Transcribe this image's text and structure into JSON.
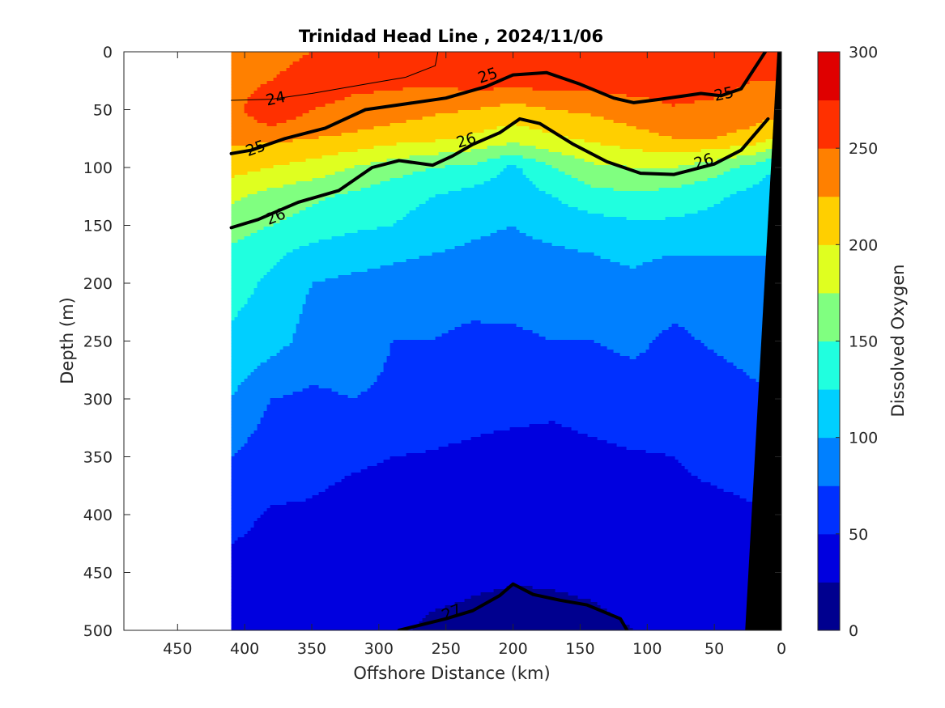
{
  "chart_data": {
    "type": "heatmap",
    "title": "Trinidad Head Line , 2024/11/06",
    "xlabel": "Offshore Distance (km)",
    "ylabel": "Depth (m)",
    "colorbar_label": "Dissolved Oxygen",
    "x_axis": {
      "range": [
        490,
        0
      ],
      "reversed": true,
      "ticks": [
        450,
        400,
        350,
        300,
        250,
        200,
        150,
        100,
        50,
        0
      ],
      "tick_labels": [
        "450",
        "400",
        "350",
        "300",
        "250",
        "200",
        "150",
        "100",
        "50",
        "0"
      ]
    },
    "y_axis": {
      "range": [
        0,
        500
      ],
      "reversed": true,
      "ticks": [
        0,
        50,
        100,
        150,
        200,
        250,
        300,
        350,
        400,
        450,
        500
      ],
      "tick_labels": [
        "0",
        "50",
        "100",
        "150",
        "200",
        "250",
        "300",
        "350",
        "400",
        "450",
        "500"
      ]
    },
    "colorbar": {
      "range": [
        0,
        300
      ],
      "ticks": [
        0,
        50,
        100,
        150,
        200,
        250,
        300
      ],
      "tick_labels": [
        "0",
        "50",
        "100",
        "150",
        "200",
        "250",
        "300"
      ],
      "levels": [
        0,
        25,
        50,
        75,
        100,
        125,
        150,
        175,
        200,
        225,
        250,
        275,
        300
      ],
      "colors": [
        "#00008f",
        "#0000df",
        "#0030ff",
        "#0080ff",
        "#00cfff",
        "#20ffdf",
        "#80ff80",
        "#dfff20",
        "#ffcf00",
        "#ff8000",
        "#ff3000",
        "#df0000"
      ]
    },
    "data_extent_km": [
      0,
      410
    ],
    "field": {
      "x": [
        410,
        380,
        350,
        320,
        290,
        260,
        230,
        200,
        170,
        140,
        110,
        80,
        50,
        20,
        10
      ],
      "y": [
        0,
        25,
        50,
        75,
        100,
        125,
        150,
        175,
        200,
        250,
        300,
        350,
        400,
        450,
        500
      ],
      "z": [
        [
          240,
          240,
          250,
          260,
          262,
          265,
          270,
          265,
          262,
          262,
          262,
          262,
          255,
          250,
          250
        ],
        [
          238,
          250,
          262,
          255,
          255,
          255,
          262,
          262,
          262,
          262,
          262,
          262,
          258,
          250,
          250
        ],
        [
          240,
          275,
          250,
          245,
          240,
          230,
          225,
          215,
          225,
          230,
          240,
          248,
          245,
          238,
          235
        ],
        [
          230,
          230,
          225,
          220,
          210,
          205,
          195,
          185,
          195,
          205,
          215,
          225,
          225,
          215,
          205
        ],
        [
          210,
          200,
          190,
          175,
          160,
          150,
          145,
          120,
          150,
          170,
          175,
          175,
          160,
          140,
          130
        ],
        [
          180,
          165,
          155,
          145,
          135,
          125,
          115,
          110,
          125,
          140,
          145,
          140,
          130,
          115,
          110
        ],
        [
          160,
          150,
          140,
          130,
          125,
          115,
          105,
          100,
          110,
          115,
          120,
          120,
          115,
          110,
          105
        ],
        [
          145,
          130,
          115,
          110,
          105,
          100,
          95,
          92,
          95,
          100,
          105,
          100,
          100,
          100,
          100
        ],
        [
          135,
          120,
          100,
          95,
          90,
          85,
          85,
          82,
          85,
          90,
          95,
          85,
          90,
          95,
          95
        ],
        [
          120,
          110,
          90,
          90,
          75,
          75,
          70,
          72,
          75,
          75,
          80,
          70,
          78,
          85,
          85
        ],
        [
          100,
          75,
          70,
          75,
          70,
          65,
          60,
          58,
          55,
          60,
          65,
          60,
          62,
          70,
          75
        ],
        [
          75,
          60,
          55,
          52,
          50,
          48,
          45,
          42,
          42,
          45,
          48,
          50,
          55,
          58,
          60
        ],
        [
          55,
          48,
          48,
          45,
          45,
          45,
          42,
          42,
          42,
          42,
          42,
          45,
          45,
          48,
          48
        ],
        [
          45,
          45,
          44,
          42,
          40,
          35,
          30,
          28,
          28,
          30,
          35,
          32,
          30,
          35,
          38
        ],
        [
          42,
          42,
          40,
          38,
          30,
          20,
          18,
          15,
          18,
          20,
          25,
          30,
          28,
          30,
          32
        ]
      ]
    },
    "density_contours": [
      {
        "label": "24",
        "bold": false,
        "points": [
          [
            410,
            42
          ],
          [
            380,
            41
          ],
          [
            350,
            36
          ],
          [
            320,
            30
          ],
          [
            300,
            26
          ],
          [
            280,
            22
          ],
          [
            258,
            12
          ],
          [
            256,
            0
          ]
        ]
      },
      {
        "label": "25",
        "bold": true,
        "points": [
          [
            410,
            88
          ],
          [
            395,
            85
          ],
          [
            370,
            75
          ],
          [
            340,
            66
          ],
          [
            310,
            50
          ],
          [
            280,
            45
          ],
          [
            250,
            40
          ],
          [
            220,
            30
          ],
          [
            200,
            20
          ],
          [
            175,
            18
          ],
          [
            150,
            28
          ],
          [
            125,
            40
          ],
          [
            110,
            44
          ],
          [
            90,
            41
          ],
          [
            60,
            36
          ],
          [
            45,
            38
          ],
          [
            30,
            32
          ],
          [
            12,
            0
          ]
        ]
      },
      {
        "label": "26",
        "bold": true,
        "points": [
          [
            410,
            152
          ],
          [
            390,
            145
          ],
          [
            360,
            130
          ],
          [
            330,
            120
          ],
          [
            305,
            100
          ],
          [
            285,
            94
          ],
          [
            260,
            98
          ],
          [
            245,
            90
          ],
          [
            230,
            80
          ],
          [
            210,
            70
          ],
          [
            195,
            58
          ],
          [
            180,
            62
          ],
          [
            155,
            80
          ],
          [
            130,
            95
          ],
          [
            105,
            105
          ],
          [
            80,
            106
          ],
          [
            70,
            103
          ],
          [
            50,
            97
          ],
          [
            30,
            85
          ],
          [
            10,
            58
          ]
        ]
      },
      {
        "label": "27",
        "bold": true,
        "points": [
          [
            285,
            500
          ],
          [
            250,
            490
          ],
          [
            230,
            483
          ],
          [
            210,
            470
          ],
          [
            200,
            460
          ],
          [
            185,
            469
          ],
          [
            165,
            474
          ],
          [
            145,
            478
          ],
          [
            120,
            490
          ],
          [
            115,
            500
          ]
        ]
      }
    ],
    "contour_label_positions": [
      {
        "text": "24",
        "at": [
          377,
          40
        ],
        "angle": -12
      },
      {
        "text": "25",
        "at": [
          392,
          83
        ],
        "angle": -20
      },
      {
        "text": "25",
        "at": [
          219,
          20
        ],
        "angle": -18
      },
      {
        "text": "25",
        "at": [
          43,
          36
        ],
        "angle": -12
      },
      {
        "text": "26",
        "at": [
          377,
          142
        ],
        "angle": -22
      },
      {
        "text": "26",
        "at": [
          235,
          76
        ],
        "angle": -17
      },
      {
        "text": "26",
        "at": [
          58,
          94
        ],
        "angle": -18
      },
      {
        "text": "27",
        "at": [
          246,
          484
        ],
        "angle": -22
      }
    ],
    "bathymetry": {
      "color": "#000000",
      "points": [
        [
          0,
          0
        ],
        [
          3,
          0
        ],
        [
          27,
          500
        ],
        [
          0,
          500
        ]
      ]
    }
  }
}
